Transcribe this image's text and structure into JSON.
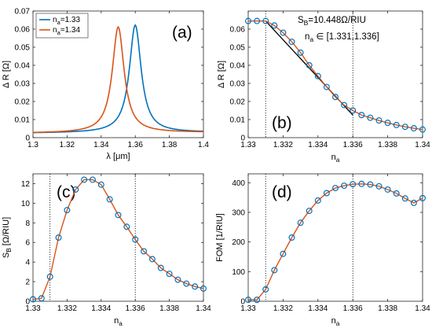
{
  "colors": {
    "blue": "#0072BD",
    "orange": "#D95319",
    "axis": "#262626"
  },
  "chart_data": [
    {
      "type": "line",
      "panel_label": "(a)",
      "xlabel": "λ [μm]",
      "ylabel": "Δ R [Ω]",
      "xlim": [
        1.3,
        1.4
      ],
      "ylim": [
        0,
        0.07
      ],
      "xticks": [
        "1.3",
        "1.32",
        "1.34",
        "1.36",
        "1.38",
        "1.4"
      ],
      "yticks": [
        "0",
        "0.01",
        "0.02",
        "0.03",
        "0.04",
        "0.05",
        "0.06",
        "0.07"
      ],
      "legend": {
        "position": "top-left",
        "entries": [
          "n",
          "n"
        ],
        "subs": [
          "a",
          "a"
        ],
        "values": [
          "=1.33",
          "=1.34"
        ]
      },
      "series": [
        {
          "name": "na=1.33",
          "color": "#0072BD",
          "lorentz": {
            "x0": 1.36,
            "gamma": 0.0042,
            "peak": 0.062,
            "base": 0.0025,
            "edge": 0.0045
          }
        },
        {
          "name": "na=1.34",
          "color": "#D95319",
          "lorentz": {
            "x0": 1.35,
            "gamma": 0.0042,
            "peak": 0.061,
            "base": 0.0025,
            "edge": 0.0045
          }
        }
      ]
    },
    {
      "type": "line",
      "panel_label": "(b)",
      "xlabel": "n",
      "xlabel_sub": "a",
      "ylabel": "Δ R [Ω]",
      "xlim": [
        1.33,
        1.34
      ],
      "ylim": [
        0,
        0.07
      ],
      "xticks": [
        "1.33",
        "1.332",
        "1.334",
        "1.336",
        "1.338",
        "1.34"
      ],
      "yticks": [
        "0",
        "0.01",
        "0.02",
        "0.03",
        "0.04",
        "0.05",
        "0.06"
      ],
      "vlines": [
        1.331,
        1.336
      ],
      "annotation_line1": "=10.448Ω/RIU",
      "annotation_line1_main": "S",
      "annotation_line1_sub": "B",
      "annotation_line2_main": "n",
      "annotation_line2_sub": "a",
      "annotation_line2": "∈ [1.331,1.336]",
      "fit_line": {
        "x": [
          1.331,
          1.336
        ],
        "y": [
          0.0645,
          0.0125
        ]
      },
      "x": [
        1.33,
        1.3305,
        1.331,
        1.3315,
        1.332,
        1.3325,
        1.333,
        1.3335,
        1.334,
        1.3345,
        1.335,
        1.3355,
        1.336,
        1.3365,
        1.337,
        1.3375,
        1.338,
        1.3385,
        1.339,
        1.3395,
        1.34
      ],
      "y": [
        0.0645,
        0.0645,
        0.0645,
        0.062,
        0.058,
        0.053,
        0.047,
        0.04,
        0.034,
        0.028,
        0.0225,
        0.018,
        0.015,
        0.0125,
        0.011,
        0.0095,
        0.0082,
        0.007,
        0.006,
        0.0052,
        0.0045
      ]
    },
    {
      "type": "line",
      "panel_label": "(c)",
      "xlabel": "n",
      "xlabel_sub": "a",
      "ylabel": "S",
      "ylabel_sub": "B",
      "ylabel_unit": " [Ω/RIU]",
      "xlim": [
        1.33,
        1.34
      ],
      "ylim": [
        0,
        13
      ],
      "xticks": [
        "1.33",
        "1.332",
        "1.334",
        "1.336",
        "1.338",
        "1.34"
      ],
      "yticks": [
        "0",
        "2",
        "4",
        "6",
        "8",
        "10",
        "12"
      ],
      "vlines": [
        1.331,
        1.336
      ],
      "x": [
        1.33,
        1.3305,
        1.331,
        1.3315,
        1.332,
        1.3325,
        1.333,
        1.3335,
        1.334,
        1.3345,
        1.335,
        1.3355,
        1.336,
        1.3365,
        1.337,
        1.3375,
        1.338,
        1.3385,
        1.339,
        1.3395,
        1.34
      ],
      "y": [
        0.2,
        0.3,
        2.5,
        6.5,
        9.3,
        11.4,
        12.4,
        12.4,
        11.9,
        10.4,
        8.8,
        7.6,
        6.3,
        5.1,
        4.3,
        3.4,
        2.8,
        2.2,
        1.8,
        1.5,
        1.3
      ]
    },
    {
      "type": "line",
      "panel_label": "(d)",
      "xlabel": "n",
      "xlabel_sub": "a",
      "ylabel": "FOM [1/RIU]",
      "xlim": [
        1.33,
        1.34
      ],
      "ylim": [
        0,
        430
      ],
      "xticks": [
        "1.33",
        "1.332",
        "1.334",
        "1.336",
        "1.338",
        "1.34"
      ],
      "yticks": [
        "0",
        "100",
        "200",
        "300",
        "400"
      ],
      "vlines": [
        1.331,
        1.336
      ],
      "x": [
        1.33,
        1.3305,
        1.331,
        1.3315,
        1.332,
        1.3325,
        1.333,
        1.3335,
        1.334,
        1.3345,
        1.335,
        1.3355,
        1.336,
        1.3365,
        1.337,
        1.3375,
        1.338,
        1.3385,
        1.339,
        1.3395,
        1.34
      ],
      "y": [
        5,
        5,
        40,
        105,
        160,
        215,
        265,
        305,
        340,
        365,
        382,
        390,
        395,
        396,
        394,
        388,
        377,
        364,
        347,
        332,
        348
      ]
    }
  ]
}
